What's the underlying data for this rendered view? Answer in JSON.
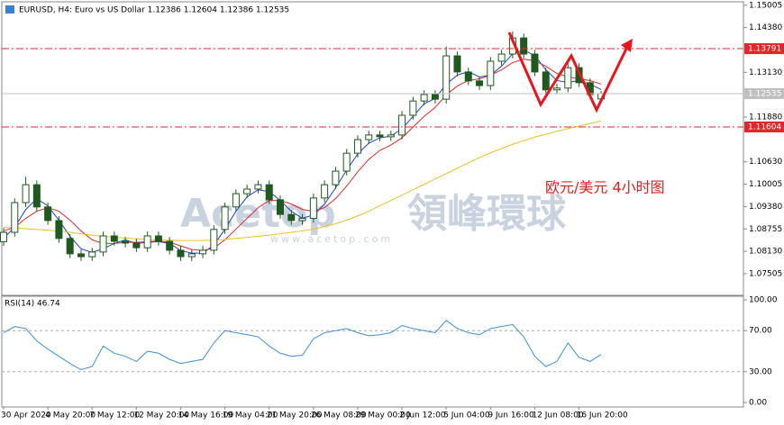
{
  "chart_data": [
    {
      "type": "candlestick",
      "title": "EURUSD, H4: Euro vs US Dollar 1.12386 1.12604 1.12386 1.12535",
      "annotation": "欧元/美元 4小时图",
      "watermark": [
        "Acetop",
        "領峰環球",
        "www.acetop.com"
      ],
      "up_color": "#1e5a1e",
      "down_color": "#1e5a1e",
      "open": [
        1.084,
        1.0866,
        1.0949,
        1.0999,
        1.0937,
        1.0899,
        1.0849,
        1.0806,
        1.0798,
        1.0811,
        1.0856,
        1.0841,
        1.0836,
        1.0823,
        1.0856,
        1.0841,
        1.0816,
        1.0798,
        1.0806,
        1.0816,
        1.0874,
        1.0937,
        1.0974,
        1.0987,
        1.0999,
        1.0957,
        1.0916,
        1.0899,
        1.0905,
        1.0962,
        1.0999,
        1.1037,
        1.1087,
        1.1125,
        1.1138,
        1.1133,
        1.1138,
        1.1193,
        1.1233,
        1.1251,
        1.1238,
        1.1359,
        1.1314,
        1.1289,
        1.1276,
        1.1344,
        1.1364,
        1.1409,
        1.1364,
        1.1314,
        1.1264,
        1.1269,
        1.1326,
        1.1284,
        1.12386
      ],
      "high": [
        1.0878,
        1.0961,
        1.1021,
        1.1011,
        1.0949,
        1.0911,
        1.0861,
        1.0818,
        1.0823,
        1.0868,
        1.0868,
        1.0853,
        1.0848,
        1.0868,
        1.0868,
        1.0853,
        1.0828,
        1.0818,
        1.0828,
        1.0886,
        1.0949,
        1.0986,
        1.0999,
        1.1011,
        1.1011,
        1.0969,
        1.0928,
        1.0917,
        1.0974,
        1.1011,
        1.1049,
        1.1099,
        1.1137,
        1.115,
        1.115,
        1.115,
        1.1205,
        1.1245,
        1.1263,
        1.1263,
        1.1385,
        1.1371,
        1.1326,
        1.1301,
        1.1356,
        1.1376,
        1.1427,
        1.1421,
        1.1376,
        1.1326,
        1.1281,
        1.1338,
        1.1338,
        1.1296,
        1.12604
      ],
      "low": [
        1.0828,
        1.0854,
        1.0937,
        1.0925,
        1.0887,
        1.0837,
        1.0794,
        1.0786,
        1.0786,
        1.0799,
        1.0829,
        1.0824,
        1.0811,
        1.0811,
        1.0829,
        1.0804,
        1.0786,
        1.0786,
        1.0794,
        1.0804,
        1.0862,
        1.0925,
        1.0962,
        1.0975,
        1.0945,
        1.0904,
        1.0887,
        1.0887,
        1.0893,
        1.095,
        1.0987,
        1.1025,
        1.1075,
        1.1113,
        1.1121,
        1.1121,
        1.1126,
        1.1181,
        1.1221,
        1.1226,
        1.1226,
        1.1302,
        1.1277,
        1.1264,
        1.1264,
        1.1332,
        1.1352,
        1.1352,
        1.1302,
        1.1252,
        1.1252,
        1.1257,
        1.1272,
        1.1239,
        1.12386
      ],
      "close": [
        1.0866,
        1.0949,
        1.0999,
        1.0937,
        1.0899,
        1.0849,
        1.0806,
        1.0798,
        1.0811,
        1.0856,
        1.0841,
        1.0836,
        1.0823,
        1.0856,
        1.0841,
        1.0816,
        1.0798,
        1.0806,
        1.0816,
        1.0874,
        1.0937,
        1.0974,
        1.0987,
        1.0999,
        1.0957,
        1.0916,
        1.0899,
        1.0905,
        1.0962,
        1.0999,
        1.1037,
        1.1087,
        1.1125,
        1.1138,
        1.1133,
        1.1138,
        1.1193,
        1.1233,
        1.1251,
        1.1238,
        1.1359,
        1.1314,
        1.1289,
        1.1276,
        1.1344,
        1.1364,
        1.1409,
        1.1364,
        1.1314,
        1.1264,
        1.1269,
        1.1326,
        1.1284,
        1.1251,
        1.12535
      ],
      "lines": [
        {
          "color": "#1f3fd0",
          "values": [
            1.085,
            1.088,
            1.093,
            1.096,
            1.094,
            1.09,
            1.0855,
            1.082,
            1.081,
            1.082,
            1.0835,
            1.0845,
            1.0835,
            1.0838,
            1.084,
            1.0835,
            1.0815,
            1.0808,
            1.0808,
            1.083,
            1.0875,
            1.0925,
            1.0965,
            1.0985,
            1.098,
            1.0955,
            1.0925,
            1.0905,
            1.0915,
            1.0945,
            1.099,
            1.104,
            1.1085,
            1.1115,
            1.113,
            1.1135,
            1.1155,
            1.119,
            1.1225,
            1.124,
            1.128,
            1.1305,
            1.1315,
            1.13,
            1.1305,
            1.133,
            1.1365,
            1.1375,
            1.136,
            1.132,
            1.129,
            1.1285,
            1.129,
            1.128,
            1.1265
          ]
        },
        {
          "color": "#e02828",
          "values": [
            1.087,
            1.088,
            1.0905,
            1.0925,
            1.0935,
            1.0925,
            1.09,
            1.087,
            1.0845,
            1.0835,
            1.0835,
            1.0838,
            1.0838,
            1.084,
            1.0842,
            1.0838,
            1.0828,
            1.0818,
            1.0815,
            1.0822,
            1.0845,
            1.0875,
            1.0905,
            1.0935,
            1.0955,
            1.0955,
            1.0945,
            1.093,
            1.0925,
            1.0935,
            1.096,
            1.0995,
            1.1035,
            1.107,
            1.1095,
            1.111,
            1.113,
            1.116,
            1.119,
            1.1215,
            1.125,
            1.1275,
            1.129,
            1.1295,
            1.1305,
            1.132,
            1.134,
            1.135,
            1.1345,
            1.133,
            1.131,
            1.13,
            1.1295,
            1.129,
            1.128
          ]
        },
        {
          "color": "#f0c020",
          "values": [
            1.088,
            1.0878,
            1.0876,
            1.0874,
            1.0872,
            1.087,
            1.0866,
            1.0862,
            1.0858,
            1.0855,
            1.0852,
            1.085,
            1.0848,
            1.0846,
            1.0845,
            1.0844,
            1.0843,
            1.0843,
            1.0843,
            1.0844,
            1.0846,
            1.0849,
            1.0852,
            1.0855,
            1.0858,
            1.0862,
            1.0866,
            1.087,
            1.0875,
            1.0882,
            1.089,
            1.09,
            1.0912,
            1.0925,
            1.094,
            1.0955,
            1.097,
            1.0985,
            1.1,
            1.1015,
            1.103,
            1.1045,
            1.106,
            1.1075,
            1.1088,
            1.11,
            1.1112,
            1.1122,
            1.1132,
            1.114,
            1.1148,
            1.1156,
            1.1163,
            1.117,
            1.1177
          ]
        }
      ],
      "levels": [
        {
          "value": 1.13791,
          "color": "#e02828"
        },
        {
          "value": 1.12535,
          "color": "#c0c0c0"
        },
        {
          "value": 1.11604,
          "color": "#e02828"
        }
      ],
      "ylim": [
        1.069,
        1.151
      ],
      "yticks": [
        1.15005,
        {
          "value": 1.1438,
          "label": "1.14380"
        },
        {
          "value": 1.1313,
          "label": "1.13130"
        },
        {
          "value": 1.1188,
          "label": "1.11880"
        },
        {
          "value": 1.1063,
          "label": "1.10630"
        },
        1.10005,
        {
          "value": 1.0938,
          "label": "1.09380"
        },
        1.08755,
        {
          "value": 1.0813,
          "label": "1.08130"
        },
        1.07505
      ]
    },
    {
      "type": "line",
      "title": "RSI(14) 46.74",
      "color": "#3a8fdc",
      "categories": [
        "30 Apr 2020",
        null,
        null,
        null,
        "4 May 20:00",
        null,
        null,
        null,
        "7 May 12:00",
        null,
        null,
        null,
        "12 May 20:00",
        null,
        null,
        null,
        "14 May 16:00",
        null,
        null,
        null,
        "19 May 04:00",
        null,
        null,
        null,
        "21 May 20:00",
        null,
        null,
        null,
        "26 May 08:00",
        null,
        null,
        null,
        "29 May 00:00",
        null,
        null,
        null,
        "2 Jun 12:00",
        null,
        null,
        null,
        "5 Jun 04:00",
        null,
        null,
        null,
        "9 Jun 16:00",
        null,
        null,
        null,
        "12 Jun 08:00",
        null,
        null,
        null,
        "16 Jun 20:00",
        null,
        null
      ],
      "values": [
        68,
        74,
        72,
        60,
        52,
        45,
        38,
        32,
        35,
        55,
        48,
        45,
        40,
        50,
        48,
        42,
        38,
        40,
        42,
        58,
        70,
        68,
        66,
        64,
        55,
        48,
        45,
        46,
        62,
        68,
        70,
        72,
        68,
        65,
        66,
        68,
        75,
        72,
        70,
        68,
        80,
        72,
        68,
        66,
        72,
        74,
        76,
        64,
        45,
        35,
        40,
        58,
        44,
        40,
        46.74
      ],
      "levels": [
        70,
        30
      ],
      "ylim": [
        0,
        100
      ],
      "yticks": [
        {
          "value": 100,
          "label": "100.00"
        },
        {
          "value": 70,
          "label": "70.00"
        },
        {
          "value": 30,
          "label": "30.00"
        },
        {
          "value": 0,
          "label": "0.00"
        }
      ]
    }
  ]
}
